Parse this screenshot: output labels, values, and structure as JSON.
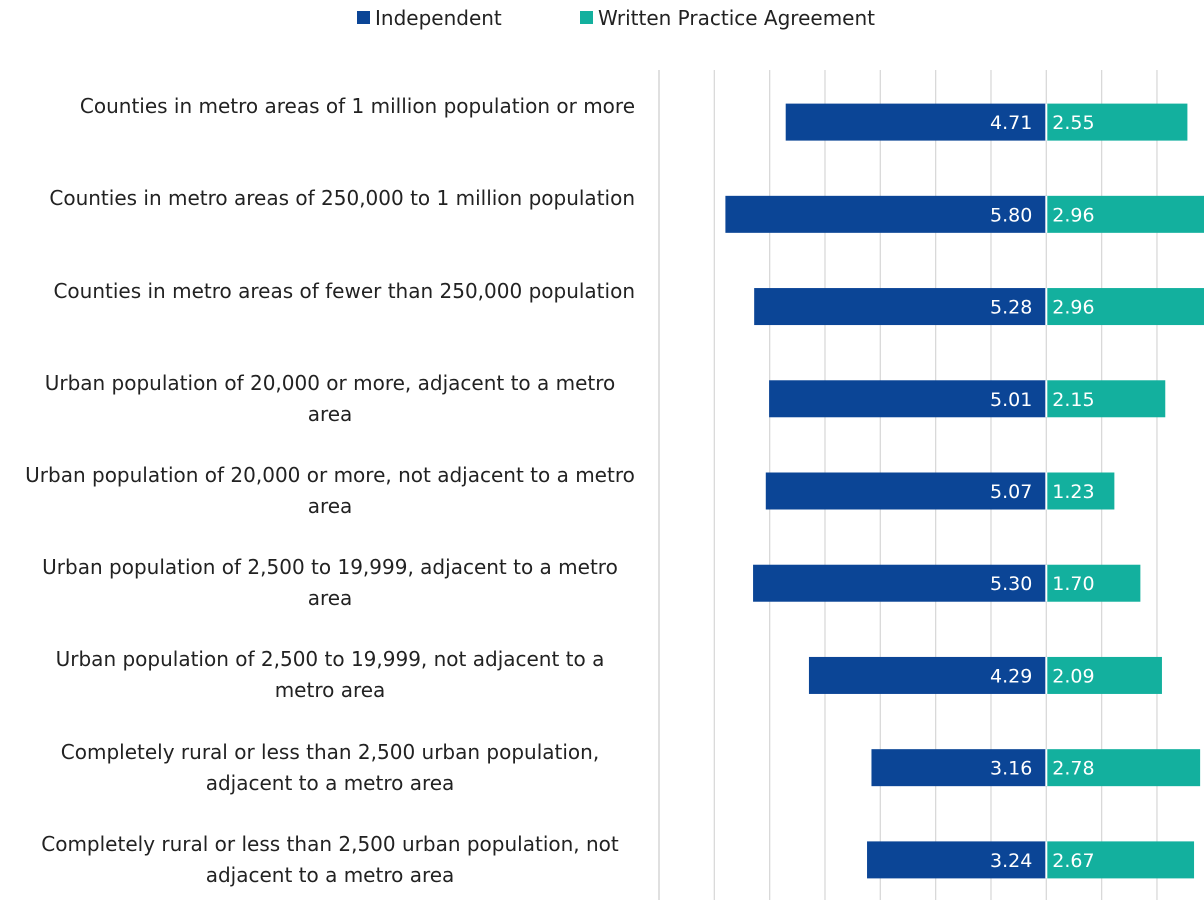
{
  "chart_data": {
    "type": "diverging_bar",
    "categories": [
      "Counties in metro areas of 1 million population or more",
      "Counties in metro areas of 250,000 to 1 million population",
      "Counties in metro areas of fewer than 250,000 population",
      "Urban population of 20,000 or more, adjacent to a metro area",
      "Urban population of 20,000 or more, not adjacent to a metro area",
      "Urban population of 2,500 to 19,999, adjacent to a metro area",
      "Urban population of 2,500 to 19,999, not adjacent to a metro area",
      "Completely rural or less than 2,500 urban population, adjacent to a metro area",
      "Completely rural or less than 2,500 urban population, not adjacent to a metro area"
    ],
    "series": [
      {
        "name": "Independent",
        "color": "#0b4596",
        "direction": "left",
        "values": [
          4.71,
          5.8,
          5.28,
          5.01,
          5.07,
          5.3,
          4.29,
          3.16,
          3.24
        ],
        "value_labels": [
          "4.71",
          "5.80",
          "5.28",
          "5.01",
          "5.07",
          "5.30",
          "4.29",
          "3.16",
          "3.24"
        ]
      },
      {
        "name": "Written Practice Agreement",
        "color": "#13b09e",
        "direction": "right",
        "values": [
          2.55,
          2.96,
          2.96,
          2.15,
          1.23,
          1.7,
          2.09,
          2.78,
          2.67
        ],
        "value_labels": [
          "2.55",
          "2.96",
          "2.96",
          "2.15",
          "1.23",
          "1.70",
          "2.09",
          "2.78",
          "2.67"
        ]
      }
    ],
    "xlim": [
      -7,
      2.85
    ],
    "xticks": [
      -7,
      -6,
      -5,
      -4,
      -3,
      -2,
      -1,
      0,
      1,
      2
    ],
    "grid": true,
    "legend": "top"
  }
}
